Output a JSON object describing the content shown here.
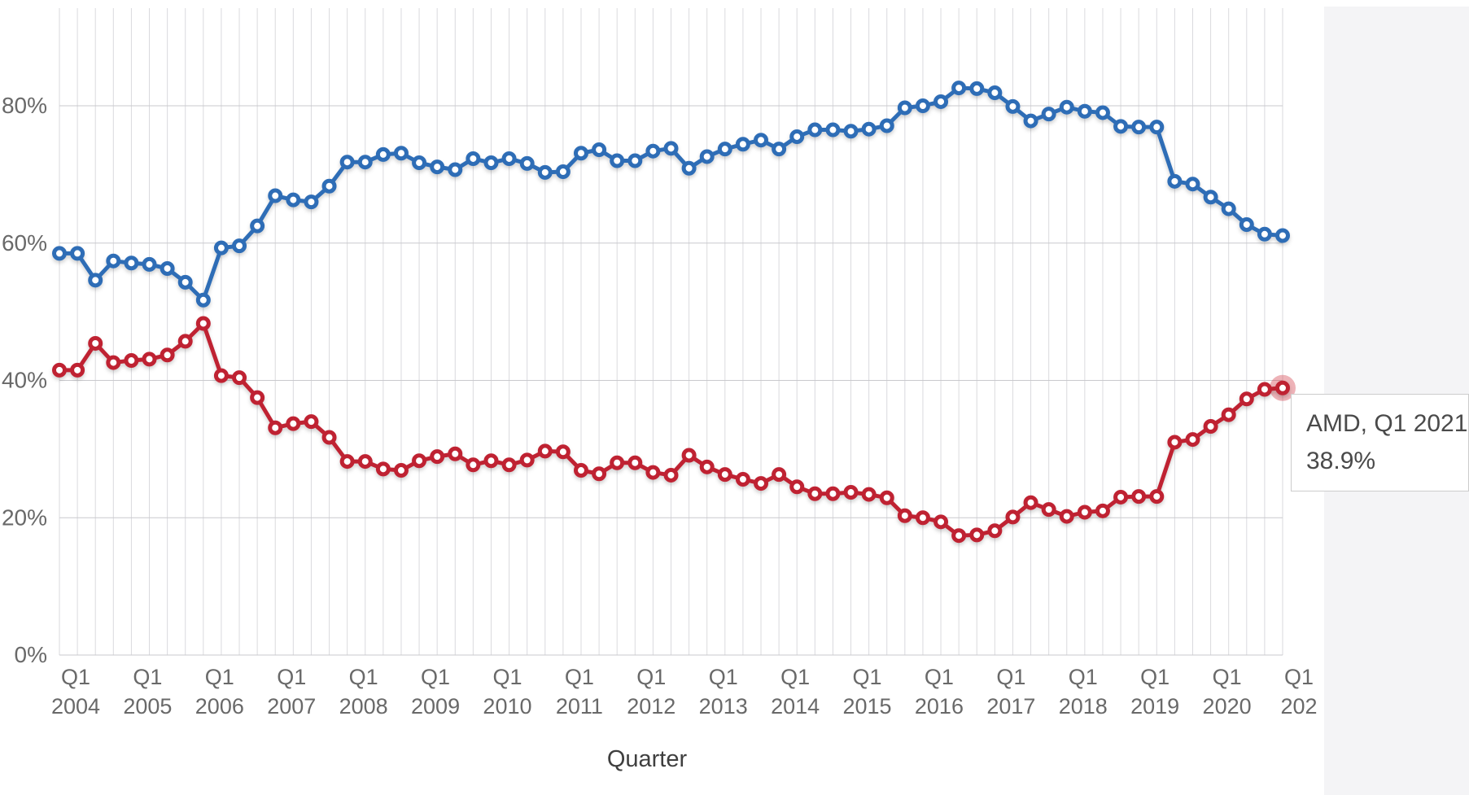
{
  "chart_data": {
    "type": "line",
    "title": "",
    "xlabel": "Quarter",
    "ylabel": "",
    "grid": true,
    "legend": "none",
    "y_ticks": [
      0,
      20,
      40,
      60,
      80
    ],
    "y_tick_labels": [
      "0%",
      "20%",
      "40%",
      "60%",
      "80%"
    ],
    "ylim": [
      0,
      94
    ],
    "x_tick_prefix": "Q1",
    "x_tick_years": [
      "2004",
      "2005",
      "2006",
      "2007",
      "2008",
      "2009",
      "2010",
      "2011",
      "2012",
      "2013",
      "2014",
      "2015",
      "2016",
      "2017",
      "2018",
      "2019",
      "2020",
      "202"
    ],
    "categories": [
      "Q1 2004",
      "Q2 2004",
      "Q3 2004",
      "Q4 2004",
      "Q1 2005",
      "Q2 2005",
      "Q3 2005",
      "Q4 2005",
      "Q1 2006",
      "Q2 2006",
      "Q3 2006",
      "Q4 2006",
      "Q1 2007",
      "Q2 2007",
      "Q3 2007",
      "Q4 2007",
      "Q1 2008",
      "Q2 2008",
      "Q3 2008",
      "Q4 2008",
      "Q1 2009",
      "Q2 2009",
      "Q3 2009",
      "Q4 2009",
      "Q1 2010",
      "Q2 2010",
      "Q3 2010",
      "Q4 2010",
      "Q1 2011",
      "Q2 2011",
      "Q3 2011",
      "Q4 2011",
      "Q1 2012",
      "Q2 2012",
      "Q3 2012",
      "Q4 2012",
      "Q1 2013",
      "Q2 2013",
      "Q3 2013",
      "Q4 2013",
      "Q1 2014",
      "Q2 2014",
      "Q3 2014",
      "Q4 2014",
      "Q1 2015",
      "Q2 2015",
      "Q3 2015",
      "Q4 2015",
      "Q1 2016",
      "Q2 2016",
      "Q3 2016",
      "Q4 2016",
      "Q1 2017",
      "Q2 2017",
      "Q3 2017",
      "Q4 2017",
      "Q1 2018",
      "Q2 2018",
      "Q3 2018",
      "Q4 2018",
      "Q1 2019",
      "Q2 2019",
      "Q3 2019",
      "Q4 2019",
      "Q1 2020",
      "Q2 2020",
      "Q3 2020",
      "Q4 2020",
      "Q1 2021"
    ],
    "series": [
      {
        "id": "blue",
        "name": "",
        "color": "#2f6db6",
        "values": [
          58.5,
          58.5,
          54.6,
          57.4,
          57.1,
          56.9,
          56.3,
          54.3,
          51.7,
          59.3,
          59.6,
          62.5,
          66.9,
          66.3,
          66.0,
          68.3,
          71.8,
          71.8,
          72.9,
          73.1,
          71.7,
          71.1,
          70.7,
          72.3,
          71.7,
          72.3,
          71.6,
          70.3,
          70.4,
          73.1,
          73.6,
          72.0,
          72.0,
          73.4,
          73.8,
          70.9,
          72.6,
          73.7,
          74.4,
          75.0,
          73.7,
          75.5,
          76.5,
          76.5,
          76.3,
          76.6,
          77.1,
          79.7,
          80.0,
          80.6,
          82.6,
          82.5,
          81.9,
          79.9,
          77.8,
          78.8,
          79.8,
          79.2,
          79.0,
          77.0,
          76.9,
          76.9,
          69.0,
          68.6,
          66.7,
          65.0,
          62.7,
          61.3,
          61.1
        ]
      },
      {
        "id": "red",
        "name": "AMD",
        "color": "#bf2433",
        "values": [
          41.5,
          41.5,
          45.4,
          42.6,
          42.9,
          43.1,
          43.7,
          45.7,
          48.3,
          40.7,
          40.4,
          37.5,
          33.1,
          33.7,
          34.0,
          31.7,
          28.2,
          28.2,
          27.1,
          26.9,
          28.3,
          28.9,
          29.3,
          27.7,
          28.3,
          27.7,
          28.4,
          29.7,
          29.6,
          26.9,
          26.4,
          28.0,
          28.0,
          26.6,
          26.2,
          29.1,
          27.4,
          26.3,
          25.6,
          25.0,
          26.3,
          24.5,
          23.5,
          23.5,
          23.7,
          23.4,
          22.9,
          20.3,
          20.0,
          19.4,
          17.4,
          17.5,
          18.1,
          20.1,
          22.2,
          21.2,
          20.2,
          20.8,
          21.0,
          23.0,
          23.1,
          23.1,
          31.0,
          31.4,
          33.3,
          35.0,
          37.3,
          38.7,
          38.9
        ]
      }
    ],
    "highlight": {
      "series_index": 1,
      "point_index": 68,
      "category": "Q1 2021",
      "value": 38.9
    },
    "tooltip": {
      "line1": "AMD, Q1 2021,",
      "line2": "38.9%"
    }
  },
  "colors": {
    "blue_line": "#2f6db6",
    "red_line": "#bf2433",
    "highlight_halo": "#d4404e",
    "vertical_grid": "#dadade",
    "horizontal_grid": "#c9c9cd",
    "axis_text": "#696969",
    "axis_title_text": "#3f3f3f",
    "tooltip_text": "#4a4a4a",
    "tooltip_border": "#cccccc",
    "side_panel_bg": "#f4f4f6",
    "background": "#ffffff"
  }
}
